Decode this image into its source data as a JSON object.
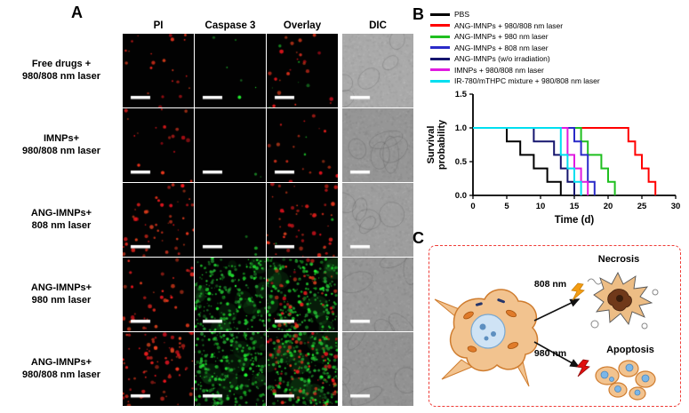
{
  "figure": {
    "panelA": {
      "label": "A",
      "columns": [
        "PI",
        "Caspase 3",
        "Overlay",
        "DIC"
      ],
      "rows": [
        {
          "label": "Free drugs +\n980/808 nm laser",
          "pi_red_count": 22,
          "caspase_green_count": 6,
          "caspase_dense": false,
          "dic_gray": 170
        },
        {
          "label": "IMNPs+\n980/808 nm laser",
          "pi_red_count": 18,
          "caspase_green_count": 2,
          "caspase_dense": false,
          "dic_gray": 150
        },
        {
          "label": "ANG-IMNPs+\n808 nm laser",
          "pi_red_count": 50,
          "caspase_green_count": 3,
          "caspase_dense": false,
          "dic_gray": 158
        },
        {
          "label": "ANG-IMNPs+\n980 nm laser",
          "pi_red_count": 38,
          "caspase_green_count": 230,
          "caspase_dense": true,
          "dic_gray": 150
        },
        {
          "label": "ANG-IMNPs+\n980/808 nm laser",
          "pi_red_count": 75,
          "caspase_green_count": 260,
          "caspase_dense": true,
          "dic_gray": 146
        }
      ]
    },
    "panelB": {
      "label": "B"
    },
    "panelC": {
      "label": "C",
      "laser_808": "808 nm",
      "laser_980": "980 nm",
      "necrosis": "Necrosis",
      "apoptosis": "Apoptosis",
      "box_color": "#ef3b36"
    }
  },
  "chart_data": {
    "type": "line",
    "subtype": "kaplan-meier-step",
    "title": "",
    "xlabel": "Time (d)",
    "ylabel": "Survival probability",
    "xlim": [
      0,
      30
    ],
    "ylim": [
      0,
      1.5
    ],
    "xticks": [
      0,
      5,
      10,
      15,
      20,
      25,
      30
    ],
    "yticks": [
      0.0,
      0.5,
      1.0,
      1.5
    ],
    "grid": false,
    "legend_position": "above-plot-top-left",
    "series": [
      {
        "name": "PBS",
        "color": "#000000",
        "points": [
          [
            0,
            1
          ],
          [
            5,
            1
          ],
          [
            5,
            0.8
          ],
          [
            7,
            0.8
          ],
          [
            7,
            0.6
          ],
          [
            9,
            0.6
          ],
          [
            9,
            0.4
          ],
          [
            11,
            0.4
          ],
          [
            11,
            0.2
          ],
          [
            13,
            0.2
          ],
          [
            13,
            0
          ]
        ]
      },
      {
        "name": "ANG-IMNPs + 980/808 nm laser",
        "color": "#ff0000",
        "points": [
          [
            0,
            1
          ],
          [
            23,
            1
          ],
          [
            23,
            0.8
          ],
          [
            24,
            0.8
          ],
          [
            24,
            0.6
          ],
          [
            25,
            0.6
          ],
          [
            25,
            0.4
          ],
          [
            26,
            0.4
          ],
          [
            26,
            0.2
          ],
          [
            27,
            0.2
          ],
          [
            27,
            0
          ]
        ]
      },
      {
        "name": "ANG-IMNPs + 980 nm laser",
        "color": "#1fbf1f",
        "points": [
          [
            0,
            1
          ],
          [
            16,
            1
          ],
          [
            16,
            0.8
          ],
          [
            17,
            0.8
          ],
          [
            17,
            0.6
          ],
          [
            19,
            0.6
          ],
          [
            19,
            0.4
          ],
          [
            20,
            0.4
          ],
          [
            20,
            0.2
          ],
          [
            21,
            0.2
          ],
          [
            21,
            0
          ]
        ]
      },
      {
        "name": "ANG-IMNPs + 808 nm laser",
        "color": "#2a2ac8",
        "points": [
          [
            0,
            1
          ],
          [
            15,
            1
          ],
          [
            15,
            0.8
          ],
          [
            16,
            0.8
          ],
          [
            16,
            0.6
          ],
          [
            17,
            0.6
          ],
          [
            17,
            0.2
          ],
          [
            18,
            0.2
          ],
          [
            18,
            0
          ]
        ]
      },
      {
        "name": "ANG-IMNPs (w/o irradiation)",
        "color": "#15156e",
        "points": [
          [
            0,
            1
          ],
          [
            9,
            1
          ],
          [
            9,
            0.8
          ],
          [
            12,
            0.8
          ],
          [
            12,
            0.6
          ],
          [
            13,
            0.6
          ],
          [
            13,
            0.4
          ],
          [
            14,
            0.4
          ],
          [
            14,
            0.2
          ],
          [
            15,
            0.2
          ],
          [
            15,
            0
          ]
        ]
      },
      {
        "name": "IMNPs + 980/808 nm laser",
        "color": "#e01ae0",
        "points": [
          [
            0,
            1
          ],
          [
            14,
            1
          ],
          [
            14,
            0.6
          ],
          [
            15,
            0.6
          ],
          [
            15,
            0.4
          ],
          [
            16,
            0.4
          ],
          [
            16,
            0.2
          ],
          [
            17,
            0.2
          ],
          [
            17,
            0
          ]
        ]
      },
      {
        "name": "IR-780/mTHPC mixture + 980/808 nm laser",
        "color": "#00dff0",
        "points": [
          [
            0,
            1
          ],
          [
            13,
            1
          ],
          [
            13,
            0.6
          ],
          [
            14,
            0.6
          ],
          [
            14,
            0.4
          ],
          [
            15,
            0.4
          ],
          [
            15,
            0.2
          ],
          [
            16,
            0.2
          ],
          [
            16,
            0
          ]
        ]
      }
    ]
  }
}
